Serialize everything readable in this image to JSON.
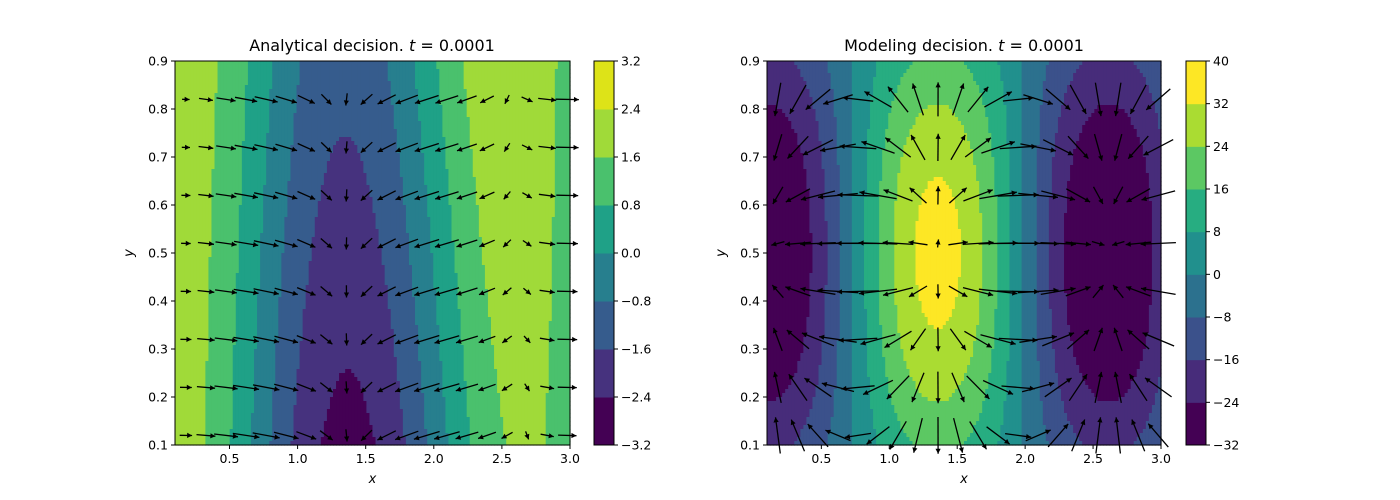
{
  "chart_data": [
    {
      "type": "contourf_quiver",
      "title_prefix": "Analytical decision. ",
      "title_var": "t",
      "title_eq": " = 0.0001",
      "xlabel": "x",
      "ylabel": "y",
      "xlim": [
        0.1,
        3.0
      ],
      "ylim": [
        0.1,
        0.9
      ],
      "xticks": [
        0.5,
        1.0,
        1.5,
        2.0,
        2.5,
        3.0
      ],
      "xtick_labels": [
        "0.5",
        "1.0",
        "1.5",
        "2.0",
        "2.5",
        "3.0"
      ],
      "yticks": [
        0.1,
        0.2,
        0.3,
        0.4,
        0.5,
        0.6,
        0.7,
        0.8,
        0.9
      ],
      "ytick_labels": [
        "0.1",
        "0.2",
        "0.3",
        "0.4",
        "0.5",
        "0.6",
        "0.7",
        "0.8",
        "0.9"
      ],
      "colorbar_levels": [
        -3.2,
        -2.4,
        -1.6,
        -0.8,
        0.0,
        0.8,
        1.6,
        2.4,
        3.2
      ],
      "colorbar_tick_labels": [
        "−3.2",
        "−2.4",
        "−1.6",
        "−0.8",
        "0.0",
        "0.8",
        "1.6",
        "2.4",
        "3.2"
      ],
      "colormap": "viridis",
      "field_formula": "value = amplitude * (cos(2.5*(x-0.1)) + 0.85*(y-0.5)*cos(1.1*(x-1.6)))",
      "amplitude": 2.0
    },
    {
      "type": "contourf_quiver",
      "title_prefix": "Modeling decision. ",
      "title_var": "t",
      "title_eq": " = 0.0001",
      "xlabel": "x",
      "ylabel": "y",
      "xlim": [
        0.1,
        3.0
      ],
      "ylim": [
        0.1,
        0.9
      ],
      "xticks": [
        0.5,
        1.0,
        1.5,
        2.0,
        2.5,
        3.0
      ],
      "xtick_labels": [
        "0.5",
        "1.0",
        "1.5",
        "2.0",
        "2.5",
        "3.0"
      ],
      "yticks": [
        0.1,
        0.2,
        0.3,
        0.4,
        0.5,
        0.6,
        0.7,
        0.8,
        0.9
      ],
      "ytick_labels": [
        "0.1",
        "0.2",
        "0.3",
        "0.4",
        "0.5",
        "0.6",
        "0.7",
        "0.8",
        "0.9"
      ],
      "colorbar_levels": [
        -32,
        -24,
        -16,
        -8,
        0,
        8,
        16,
        24,
        32,
        40
      ],
      "colorbar_tick_labels": [
        "−32",
        "−24",
        "−16",
        "−8",
        "0",
        "8",
        "16",
        "24",
        "32",
        "40"
      ],
      "colormap": "viridis",
      "field_formula": "value = -amplitude * cos(2.5*(x-0.1)) * (0.4 + sin(pi*y))",
      "amplitude": 25.0
    }
  ]
}
